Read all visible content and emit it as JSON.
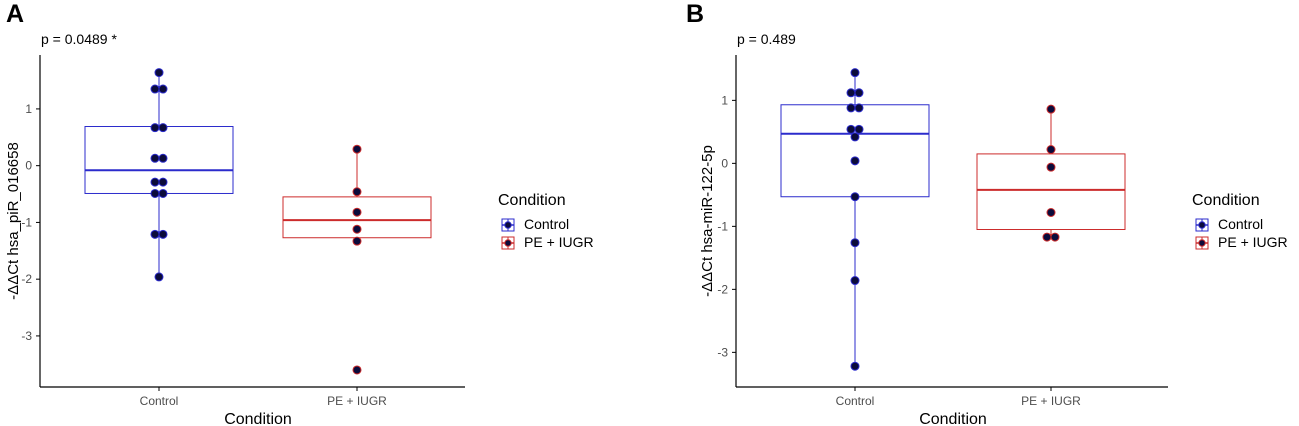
{
  "chart_data": [
    {
      "type": "box",
      "panel_label": "A",
      "p_value_text": "p = 0.0489 *",
      "xlabel": "Condition",
      "ylabel": "-ΔΔCt hsa_piR_016658",
      "categories": [
        "Control",
        "PE + IUGR"
      ],
      "yticks": [
        1,
        0,
        -1,
        -2,
        -3
      ],
      "ylim": [
        -3.9,
        1.95
      ],
      "boxes": [
        {
          "category": "Control",
          "q1": -0.49,
          "median": -0.08,
          "q3": 0.69,
          "whisker_low": -1.96,
          "whisker_high": 1.64
        },
        {
          "category": "PE + IUGR",
          "q1": -1.27,
          "median": -0.96,
          "q3": -0.55,
          "whisker_low": -1.33,
          "whisker_high": 0.29
        }
      ],
      "points": [
        {
          "category": "Control",
          "values": [
            1.64,
            1.35,
            1.35,
            0.67,
            0.67,
            0.13,
            0.13,
            -0.29,
            -0.29,
            -0.49,
            -0.49,
            -1.21,
            -1.21,
            -1.96
          ]
        },
        {
          "category": "PE + IUGR",
          "values": [
            0.29,
            -0.46,
            -0.82,
            -1.12,
            -1.33,
            -3.6
          ]
        }
      ],
      "legend": {
        "title": "Condition",
        "entries": [
          "Control",
          "PE + IUGR"
        ],
        "position": "right"
      }
    },
    {
      "type": "box",
      "panel_label": "B",
      "p_value_text": "p = 0.489",
      "xlabel": "Condition",
      "ylabel": "-ΔΔCt hsa-miR-122-5p",
      "categories": [
        "Control",
        "PE + IUGR"
      ],
      "yticks": [
        1,
        0,
        -1,
        -2,
        -3
      ],
      "ylim": [
        -3.55,
        1.72
      ],
      "boxes": [
        {
          "category": "Control",
          "q1": -0.53,
          "median": 0.47,
          "q3": 0.93,
          "whisker_low": -3.22,
          "whisker_high": 1.44
        },
        {
          "category": "PE + IUGR",
          "q1": -1.05,
          "median": -0.42,
          "q3": 0.15,
          "whisker_low": -1.17,
          "whisker_high": 0.86
        }
      ],
      "points": [
        {
          "category": "Control",
          "values": [
            1.44,
            1.12,
            1.12,
            0.88,
            0.88,
            0.54,
            0.54,
            0.42,
            0.04,
            -0.53,
            -1.26,
            -1.86,
            -3.22
          ]
        },
        {
          "category": "PE + IUGR",
          "values": [
            0.86,
            0.22,
            -0.06,
            -0.78,
            -1.17,
            -1.17
          ]
        }
      ],
      "legend": {
        "title": "Condition",
        "entries": [
          "Control",
          "PE + IUGR"
        ],
        "position": "right"
      }
    }
  ],
  "colors": {
    "control": "#2b2bcc",
    "pe_iugr": "#cc2b2b",
    "point_fill": "#0b0b3b",
    "axis": "#000000",
    "tick_text": "#4d4d4d"
  }
}
